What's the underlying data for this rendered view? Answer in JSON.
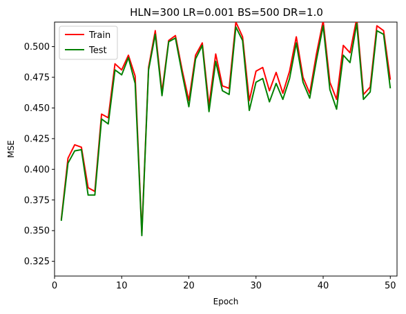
{
  "chart_data": {
    "type": "line",
    "title": "HLN=300 LR=0.001 BS=500 DR=1.0",
    "xlabel": "Epoch",
    "ylabel": "MSE",
    "xlim": [
      0,
      51
    ],
    "ylim": [
      0.313,
      0.52
    ],
    "xticks": [
      0,
      10,
      20,
      30,
      40,
      50
    ],
    "yticks": [
      0.325,
      0.35,
      0.375,
      0.4,
      0.425,
      0.45,
      0.475,
      0.5
    ],
    "ytick_labels": [
      "0.325",
      "0.350",
      "0.375",
      "0.400",
      "0.425",
      "0.450",
      "0.475",
      "0.500"
    ],
    "grid": false,
    "legend_position": "top-left",
    "x": [
      1,
      2,
      3,
      4,
      5,
      6,
      7,
      8,
      9,
      10,
      11,
      12,
      13,
      14,
      15,
      16,
      17,
      18,
      19,
      20,
      21,
      22,
      23,
      24,
      25,
      26,
      27,
      28,
      29,
      30,
      31,
      32,
      33,
      34,
      35,
      36,
      37,
      38,
      39,
      40,
      41,
      42,
      43,
      44,
      45,
      46,
      47,
      48,
      49,
      50
    ],
    "series": [
      {
        "name": "Train",
        "color": "#ff0000",
        "values": [
          0.359,
          0.409,
          0.42,
          0.418,
          0.385,
          0.382,
          0.445,
          0.442,
          0.486,
          0.481,
          0.493,
          0.476,
          0.348,
          0.483,
          0.513,
          0.463,
          0.505,
          0.509,
          0.481,
          0.456,
          0.493,
          0.503,
          0.452,
          0.494,
          0.468,
          0.466,
          0.52,
          0.508,
          0.456,
          0.48,
          0.483,
          0.464,
          0.479,
          0.462,
          0.48,
          0.508,
          0.475,
          0.462,
          0.494,
          0.521,
          0.471,
          0.457,
          0.501,
          0.495,
          0.523,
          0.461,
          0.467,
          0.517,
          0.513,
          0.473
        ]
      },
      {
        "name": "Test",
        "color": "#008000",
        "values": [
          0.358,
          0.405,
          0.415,
          0.416,
          0.379,
          0.379,
          0.441,
          0.437,
          0.481,
          0.477,
          0.491,
          0.47,
          0.346,
          0.481,
          0.51,
          0.46,
          0.504,
          0.507,
          0.478,
          0.451,
          0.49,
          0.501,
          0.447,
          0.488,
          0.464,
          0.461,
          0.516,
          0.505,
          0.448,
          0.471,
          0.474,
          0.455,
          0.47,
          0.457,
          0.474,
          0.503,
          0.471,
          0.458,
          0.489,
          0.517,
          0.465,
          0.449,
          0.493,
          0.487,
          0.519,
          0.457,
          0.463,
          0.513,
          0.51,
          0.466
        ]
      }
    ]
  }
}
